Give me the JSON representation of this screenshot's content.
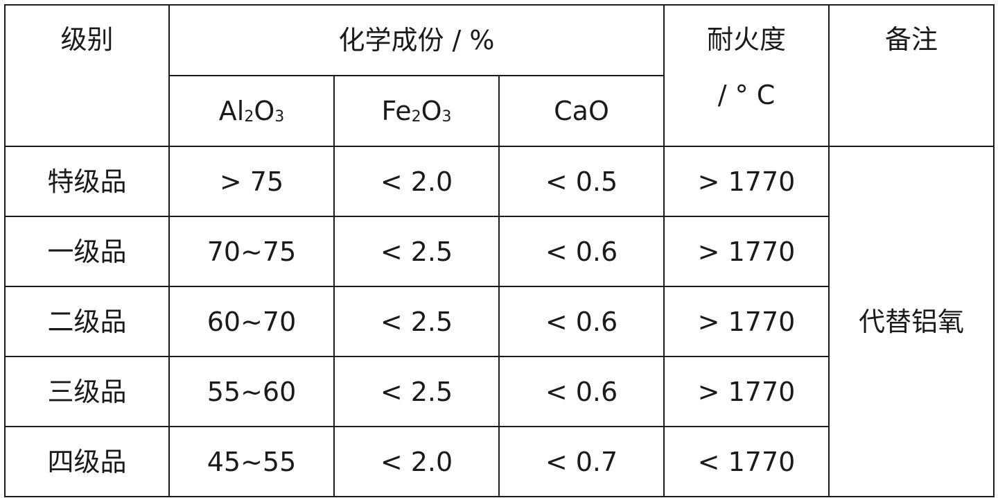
{
  "table": {
    "headers": {
      "grade": "级别",
      "composition": "化学成份 / %",
      "refractoriness": "耐火度",
      "refractoriness_unit": "/ ° C",
      "remark": "备注"
    },
    "sub_headers": {
      "al2o3": {
        "base": "Al",
        "sub1": "2",
        "mid": "O",
        "sub2": "3"
      },
      "fe2o3": {
        "base": "Fe",
        "sub1": "2",
        "mid": "O",
        "sub2": "3"
      },
      "cao": "CaO"
    },
    "rows": [
      {
        "grade": "特级品",
        "al2o3": "> 75",
        "fe2o3": "< 2.0",
        "cao": "< 0.5",
        "refractoriness": "> 1770"
      },
      {
        "grade": "一级品",
        "al2o3": "70~75",
        "fe2o3": "< 2.5",
        "cao": "< 0.6",
        "refractoriness": "> 1770"
      },
      {
        "grade": "二级品",
        "al2o3": "60~70",
        "fe2o3": "< 2.5",
        "cao": "< 0.6",
        "refractoriness": "> 1770"
      },
      {
        "grade": "三级品",
        "al2o3": "55~60",
        "fe2o3": "< 2.5",
        "cao": "< 0.6",
        "refractoriness": "> 1770"
      },
      {
        "grade": "四级品",
        "al2o3": "45~55",
        "fe2o3": "< 2.0",
        "cao": "< 0.7",
        "refractoriness": "< 1770"
      }
    ],
    "remark": "代替铝氧"
  }
}
